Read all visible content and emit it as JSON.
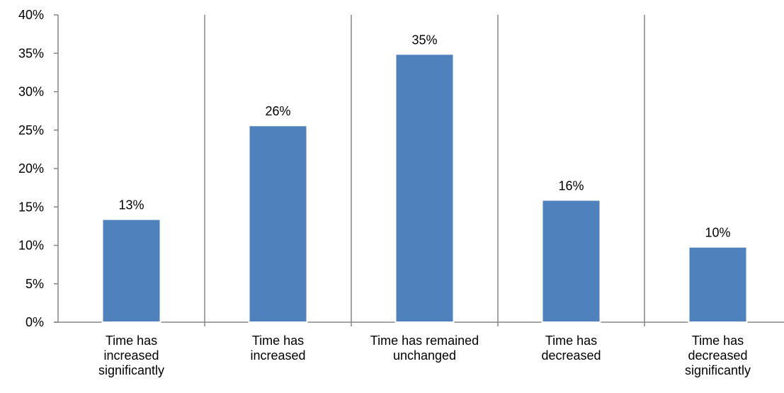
{
  "chart_data": {
    "type": "bar",
    "categories": [
      [
        "Time has",
        "increased",
        "significantly"
      ],
      [
        "Time has",
        "increased"
      ],
      [
        "Time has remained",
        "unchanged"
      ],
      [
        "Time has",
        "decreased"
      ],
      [
        "Time has",
        "decreased",
        "significantly"
      ]
    ],
    "values": [
      13.4,
      25.6,
      34.9,
      15.9,
      9.8
    ],
    "data_labels": [
      "13%",
      "26%",
      "35%",
      "16%",
      "10%"
    ],
    "y_ticks": [
      "0%",
      "5%",
      "10%",
      "15%",
      "20%",
      "25%",
      "30%",
      "35%",
      "40%"
    ],
    "ylim": [
      0,
      40
    ],
    "title": "",
    "xlabel": "",
    "ylabel": "",
    "grid": false,
    "legend": "none",
    "bar_color": "#4f81bd",
    "bar_edge_color": "#ffffff",
    "axis_color": "#868686"
  }
}
